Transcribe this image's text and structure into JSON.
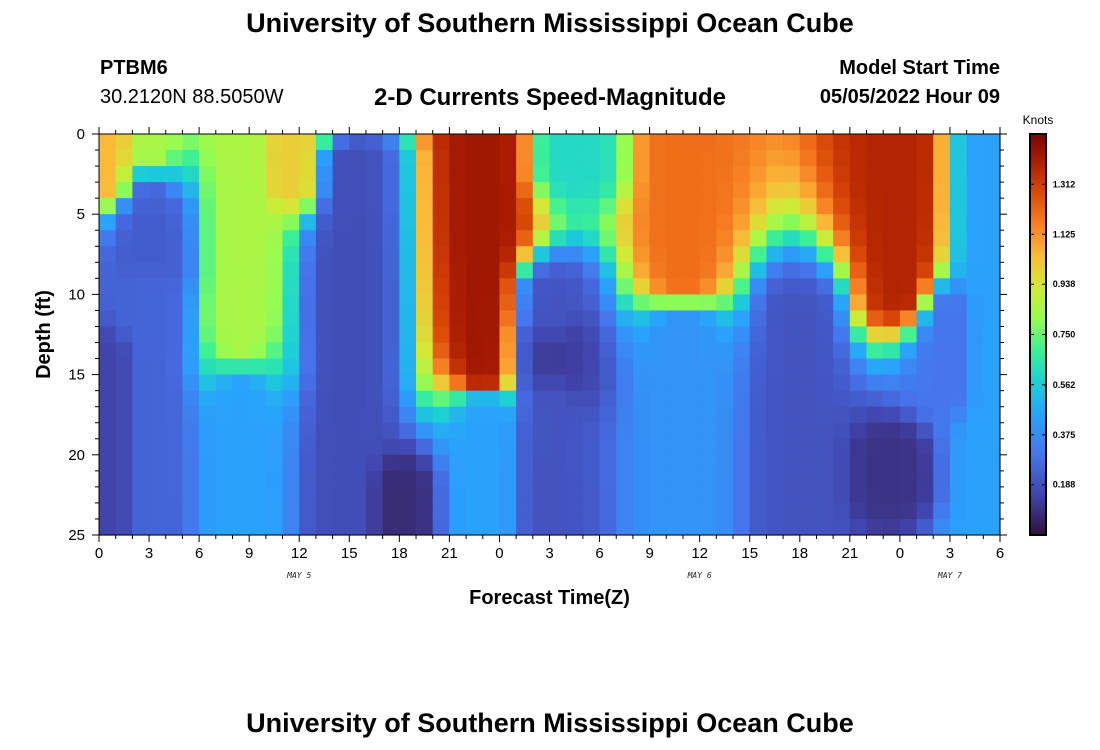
{
  "header": {
    "title": "University of Southern Mississippi Ocean Cube",
    "station_id": "PTBM6",
    "station_coords": "30.2120N  88.5050W",
    "plot_subtitle": "2-D Currents Speed-Magnitude",
    "model_start_label": "Model Start Time",
    "model_start_value": "05/05/2022 Hour 09"
  },
  "footer": {
    "title": "University of Southern Mississippi Ocean Cube"
  },
  "chart_data": {
    "type": "heatmap",
    "title": "2-D Currents Speed-Magnitude",
    "xlabel": "Forecast Time(Z)",
    "ylabel": "Depth (ft)",
    "x_hours": [
      0,
      54
    ],
    "x_tick_hours": [
      0,
      3,
      6,
      9,
      12,
      15,
      18,
      21,
      24,
      27,
      30,
      33,
      36,
      39,
      42,
      45,
      48,
      51,
      54
    ],
    "x_tick_labels": [
      "0",
      "3",
      "6",
      "9",
      "12",
      "15",
      "18",
      "21",
      "0",
      "3",
      "6",
      "9",
      "12",
      "15",
      "18",
      "21",
      "0",
      "3",
      "6"
    ],
    "date_labels": [
      {
        "text": "MAY 5",
        "hour": 12
      },
      {
        "text": "MAY 6",
        "hour": 36
      },
      {
        "text": "MAY 7",
        "hour": 51
      }
    ],
    "ylim": [
      0,
      25
    ],
    "y_ticks": [
      0,
      5,
      10,
      15,
      20,
      25
    ],
    "y_inverted": true,
    "colorbar": {
      "unit": "Knots",
      "min": 0.0,
      "max": 1.5,
      "tick_values": [
        0.188,
        0.375,
        0.562,
        0.75,
        0.938,
        1.125,
        1.312
      ],
      "tick_labels": [
        "0.188",
        "0.375",
        "0.562",
        "0.750",
        "0.938",
        "1.125",
        "1.312"
      ]
    },
    "speed_features_knots": [
      {
        "hour": 0.5,
        "depth_top": 0,
        "depth_bottom": 3,
        "speed": 1.05
      },
      {
        "hour": 3,
        "depth_top": 0,
        "depth_bottom": 2,
        "speed": 0.85
      },
      {
        "hour": 3,
        "depth_top": 3,
        "depth_bottom": 25,
        "speed": 0.25
      },
      {
        "hour": 3,
        "depth_top": 5,
        "depth_bottom": 8,
        "speed": 0.2
      },
      {
        "hour": 0.5,
        "depth_top": 14,
        "depth_bottom": 25,
        "speed": 0.15
      },
      {
        "hour": 8.5,
        "depth_top": 0,
        "depth_bottom": 14,
        "speed": 0.85
      },
      {
        "hour": 11.5,
        "depth_top": 0,
        "depth_bottom": 3,
        "speed": 1.0
      },
      {
        "hour": 8.5,
        "depth_top": 15,
        "depth_bottom": 25,
        "speed": 0.45
      },
      {
        "hour": 15,
        "depth_top": 2,
        "depth_bottom": 25,
        "speed": 0.18
      },
      {
        "hour": 18,
        "depth_top": 22,
        "depth_bottom": 25,
        "speed": 0.08
      },
      {
        "hour": 23,
        "depth_top": 0,
        "depth_bottom": 15,
        "speed": 1.42
      },
      {
        "hour": 23,
        "depth_top": 17,
        "depth_bottom": 25,
        "speed": 0.45
      },
      {
        "hour": 27,
        "depth_top": 10,
        "depth_bottom": 25,
        "speed": 0.2
      },
      {
        "hour": 27,
        "depth_top": 13,
        "depth_bottom": 15,
        "speed": 0.06
      },
      {
        "hour": 28.5,
        "depth_top": 0,
        "depth_bottom": 2,
        "speed": 0.6
      },
      {
        "hour": 35,
        "depth_top": 0,
        "depth_bottom": 9,
        "speed": 1.2
      },
      {
        "hour": 35,
        "depth_top": 12,
        "depth_bottom": 25,
        "speed": 0.4
      },
      {
        "hour": 42,
        "depth_top": 11,
        "depth_bottom": 25,
        "speed": 0.2
      },
      {
        "hour": 48,
        "depth_top": 0,
        "depth_bottom": 10,
        "speed": 1.38
      },
      {
        "hour": 47.5,
        "depth_top": 20,
        "depth_bottom": 22,
        "speed": 0.1
      },
      {
        "hour": 51,
        "depth_top": 11,
        "depth_bottom": 16,
        "speed": 0.3
      },
      {
        "hour": 53.5,
        "depth_top": 0,
        "depth_bottom": 25,
        "speed": 0.45
      }
    ]
  }
}
